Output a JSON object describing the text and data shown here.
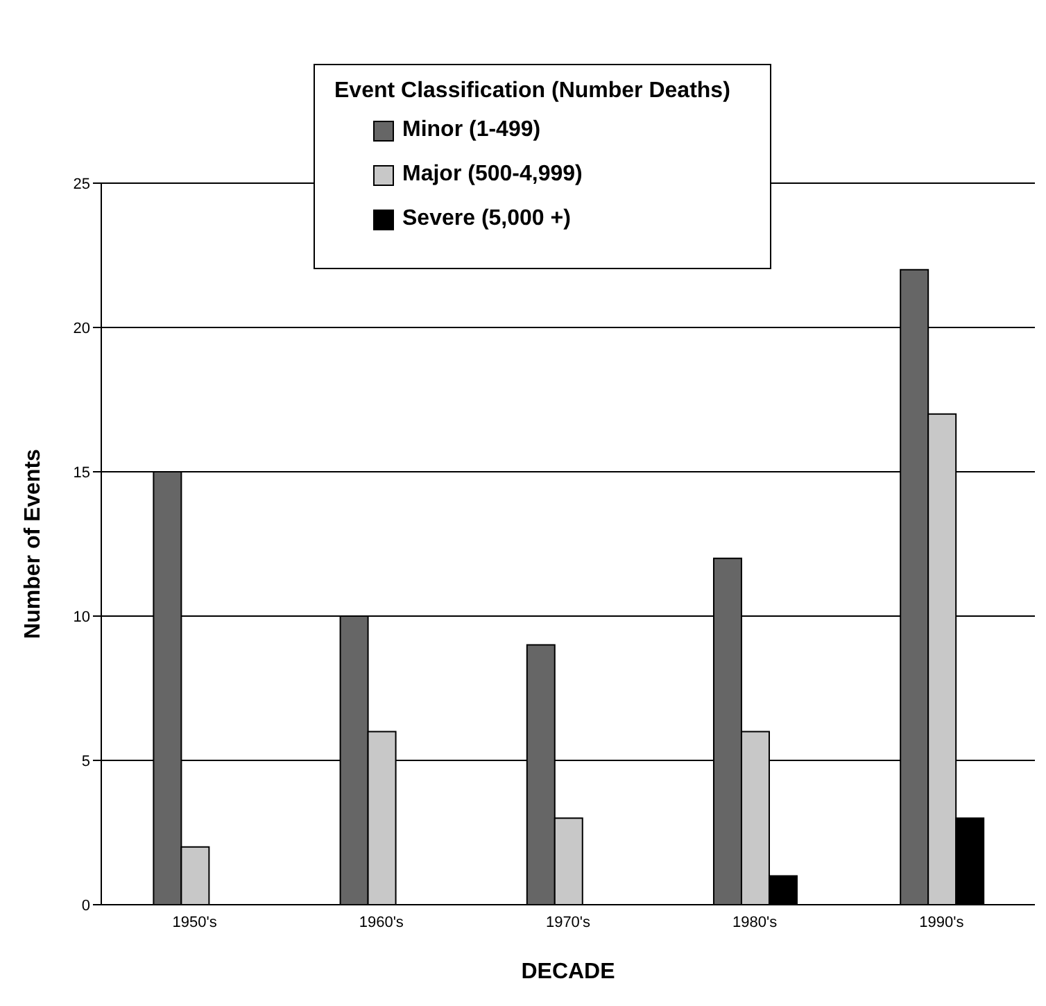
{
  "chart_data": {
    "type": "bar",
    "xlabel": "DECADE",
    "ylabel": "Number of Events",
    "legend_title": "Event Classification (Number Deaths)",
    "categories": [
      "1950's",
      "1960's",
      "1970's",
      "1980's",
      "1990's"
    ],
    "series": [
      {
        "name": "Minor (1-499)",
        "color": "#666666",
        "values": [
          15,
          10,
          9,
          12,
          22
        ]
      },
      {
        "name": "Major (500-4,999)",
        "color": "#c8c8c8",
        "values": [
          2,
          6,
          3,
          6,
          17
        ]
      },
      {
        "name": "Severe (5,000 +)",
        "color": "#000000",
        "values": [
          null,
          null,
          null,
          1,
          3
        ]
      }
    ],
    "ylim": [
      0,
      25
    ],
    "yticks": [
      0,
      5,
      10,
      15,
      20,
      25
    ],
    "grid": "y",
    "legend": "top"
  }
}
